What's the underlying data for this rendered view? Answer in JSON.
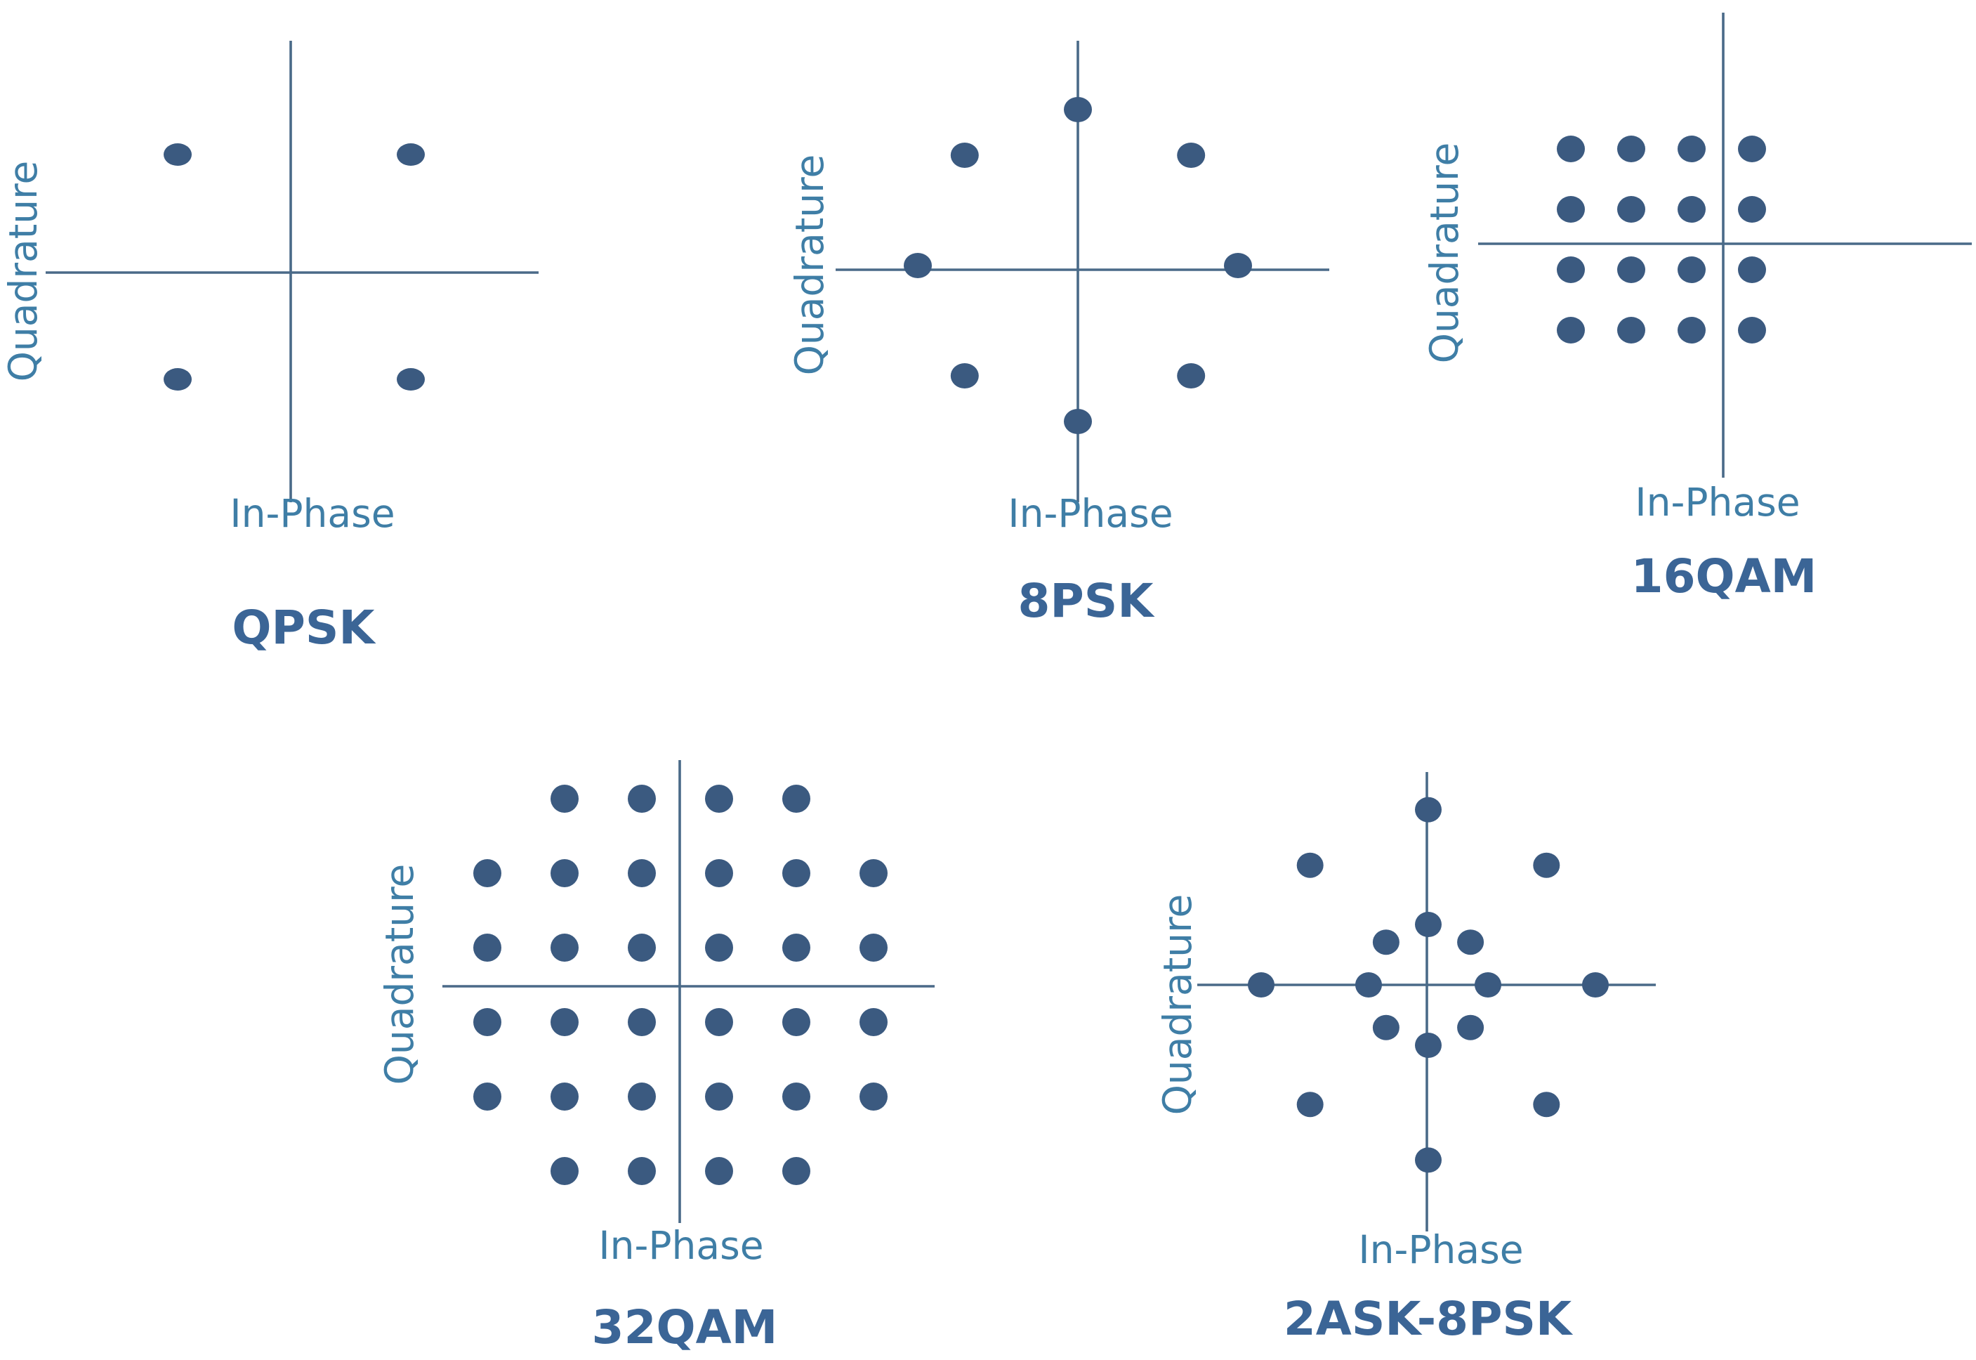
{
  "diagrams": [
    {
      "title": "QPSK",
      "xlabel": "In-Phase",
      "ylabel": "Quadrature",
      "points": [
        [
          -1,
          1
        ],
        [
          1,
          1
        ],
        [
          -1,
          -1
        ],
        [
          1,
          -1
        ]
      ]
    },
    {
      "title": "8PSK",
      "xlabel": "In-Phase",
      "ylabel": "Quadrature",
      "points": [
        [
          0,
          1
        ],
        [
          0.707,
          0.707
        ],
        [
          1,
          0
        ],
        [
          0.707,
          -0.707
        ],
        [
          0,
          -1
        ],
        [
          -0.707,
          -0.707
        ],
        [
          -1,
          0
        ],
        [
          -0.707,
          0.707
        ]
      ]
    },
    {
      "title": "16QAM",
      "xlabel": "In-Phase",
      "ylabel": "Quadrature",
      "points": [
        [
          -3,
          3
        ],
        [
          -1,
          3
        ],
        [
          1,
          3
        ],
        [
          3,
          3
        ],
        [
          -3,
          1
        ],
        [
          -1,
          1
        ],
        [
          1,
          1
        ],
        [
          3,
          1
        ],
        [
          -3,
          -1
        ],
        [
          -1,
          -1
        ],
        [
          1,
          -1
        ],
        [
          3,
          -1
        ],
        [
          -3,
          -3
        ],
        [
          -1,
          -3
        ],
        [
          1,
          -3
        ],
        [
          3,
          -3
        ]
      ]
    },
    {
      "title": "32QAM",
      "xlabel": "In-Phase",
      "ylabel": "Quadrature",
      "points": [
        [
          -3,
          5
        ],
        [
          -1,
          5
        ],
        [
          1,
          5
        ],
        [
          3,
          5
        ],
        [
          -5,
          3
        ],
        [
          -3,
          3
        ],
        [
          -1,
          3
        ],
        [
          1,
          3
        ],
        [
          3,
          3
        ],
        [
          5,
          3
        ],
        [
          -5,
          1
        ],
        [
          -3,
          1
        ],
        [
          -1,
          1
        ],
        [
          1,
          1
        ],
        [
          3,
          1
        ],
        [
          5,
          1
        ],
        [
          -5,
          -1
        ],
        [
          -3,
          -1
        ],
        [
          -1,
          -1
        ],
        [
          1,
          -1
        ],
        [
          3,
          -1
        ],
        [
          5,
          -1
        ],
        [
          -5,
          -3
        ],
        [
          -3,
          -3
        ],
        [
          -1,
          -3
        ],
        [
          1,
          -3
        ],
        [
          3,
          -3
        ],
        [
          5,
          -3
        ],
        [
          -3,
          -5
        ],
        [
          -1,
          -5
        ],
        [
          1,
          -5
        ],
        [
          3,
          -5
        ]
      ]
    },
    {
      "title": "2ASK-8PSK",
      "xlabel": "In-Phase",
      "ylabel": "Quadrature",
      "points": [
        [
          0,
          1
        ],
        [
          0.707,
          0.707
        ],
        [
          1,
          0
        ],
        [
          0.707,
          -0.707
        ],
        [
          0,
          -1
        ],
        [
          -0.707,
          -0.707
        ],
        [
          -1,
          0
        ],
        [
          -0.707,
          0.707
        ],
        [
          0,
          2.9
        ],
        [
          1.98,
          1.98
        ],
        [
          2.8,
          0
        ],
        [
          1.98,
          -1.98
        ],
        [
          0,
          -2.9
        ],
        [
          -1.98,
          -1.98
        ],
        [
          -2.8,
          0
        ],
        [
          -1.98,
          1.98
        ]
      ]
    }
  ]
}
